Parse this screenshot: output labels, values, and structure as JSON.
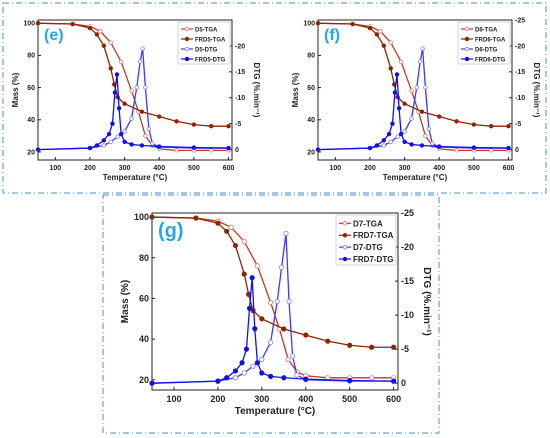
{
  "colors": {
    "tga_line": "#c0392b",
    "tga_open_marker": "#e07a6a",
    "frd_tga": "#8b2500",
    "dtg_line": "#3a3aff",
    "dtg_open_marker": "#7f7fff",
    "frd_dtg": "#1010ee",
    "panel_letter": "#2aa4e8",
    "frame": "#4a90c8",
    "axis": "#222222"
  },
  "chart_data": [
    {
      "panel_letter": "(e)",
      "type": "line",
      "xlabel": "Temperature (°C)",
      "ylabel_left": "Mass (%)",
      "ylabel_right": "DTG (%.min⁻¹)",
      "xlim": [
        50,
        610
      ],
      "ylim_left": [
        15,
        102
      ],
      "ylim_right_inverted": [
        2,
        -25
      ],
      "x_ticks": [
        "100",
        "200",
        "300",
        "400",
        "500",
        "600"
      ],
      "y_left_ticks": [
        "20",
        "40",
        "60",
        "80",
        "100"
      ],
      "y_right_ticks": [
        "0",
        "-5",
        "-10",
        "-15",
        "-20"
      ],
      "legend": [
        "D5-TGA",
        "FRD5-TGA",
        "D5-DTG",
        "FRD5-DTG"
      ],
      "legend_position": "top-right",
      "series": [
        {
          "name": "D5-TGA",
          "axis": "left",
          "style": "open",
          "x": [
            50,
            150,
            200,
            230,
            260,
            290,
            320,
            340,
            360,
            380,
            400,
            450,
            500,
            550,
            600
          ],
          "y": [
            100,
            99.5,
            98,
            95,
            88,
            76,
            58,
            45,
            30,
            24,
            22,
            21,
            21,
            21,
            21
          ]
        },
        {
          "name": "FRD5-TGA",
          "axis": "left",
          "style": "filled",
          "x": [
            50,
            150,
            200,
            220,
            240,
            260,
            270,
            280,
            300,
            350,
            400,
            450,
            500,
            550,
            600
          ],
          "y": [
            100,
            99.5,
            97,
            93,
            86,
            72,
            62,
            54,
            50,
            45,
            42,
            39,
            37,
            36,
            36
          ]
        },
        {
          "name": "D5-DTG",
          "axis": "right",
          "style": "open",
          "x": [
            50,
            200,
            240,
            260,
            280,
            300,
            320,
            335,
            345,
            352,
            360,
            370,
            380,
            400,
            500,
            600
          ],
          "y": [
            0,
            -0.3,
            -0.8,
            -1.5,
            -2.5,
            -3.5,
            -6,
            -12,
            -17,
            -19.5,
            -12,
            -4,
            -1.2,
            -0.5,
            -0.3,
            -0.3
          ]
        },
        {
          "name": "FRD5-DTG",
          "axis": "right",
          "style": "filled",
          "x": [
            50,
            200,
            220,
            240,
            255,
            265,
            272,
            278,
            284,
            290,
            300,
            320,
            350,
            400,
            500,
            600
          ],
          "y": [
            0,
            -0.3,
            -0.8,
            -1.8,
            -3,
            -5,
            -11,
            -14.5,
            -8,
            -3,
            -1.5,
            -1,
            -0.8,
            -0.6,
            -0.4,
            -0.3
          ]
        }
      ]
    },
    {
      "panel_letter": "(f)",
      "type": "line",
      "xlabel": "Temperature (°C)",
      "ylabel_left": "Mass (%)",
      "ylabel_right": "DTG (%.min⁻¹)",
      "xlim": [
        50,
        610
      ],
      "ylim_left": [
        15,
        102
      ],
      "ylim_right_inverted": [
        2,
        -25
      ],
      "x_ticks": [
        "100",
        "200",
        "300",
        "400",
        "500",
        "600"
      ],
      "y_left_ticks": [
        "20",
        "40",
        "60",
        "80",
        "100"
      ],
      "y_right_ticks": [
        "0",
        "-5",
        "-10",
        "-15",
        "-20",
        "-25"
      ],
      "legend": [
        "D6-TGA",
        "FRD6-TGA",
        "D6-DTG",
        "FRD6-DTG"
      ],
      "legend_position": "top-right",
      "series": [
        {
          "name": "D6-TGA",
          "axis": "left",
          "style": "open",
          "x": [
            50,
            150,
            200,
            230,
            260,
            290,
            320,
            340,
            360,
            380,
            400,
            450,
            500,
            550,
            600
          ],
          "y": [
            100,
            99.5,
            98,
            95,
            88,
            76,
            58,
            45,
            30,
            24,
            22,
            21,
            21,
            21,
            21
          ]
        },
        {
          "name": "FRD6-TGA",
          "axis": "left",
          "style": "filled",
          "x": [
            50,
            150,
            200,
            220,
            240,
            260,
            270,
            280,
            300,
            350,
            400,
            450,
            500,
            550,
            600
          ],
          "y": [
            100,
            99.5,
            97,
            93,
            86,
            72,
            62,
            54,
            50,
            45,
            42,
            39,
            37,
            36,
            36
          ]
        },
        {
          "name": "D6-DTG",
          "axis": "right",
          "style": "open",
          "x": [
            50,
            200,
            240,
            260,
            280,
            300,
            320,
            335,
            345,
            352,
            360,
            370,
            380,
            400,
            500,
            600
          ],
          "y": [
            0,
            -0.3,
            -0.8,
            -1.5,
            -2.5,
            -3.5,
            -6,
            -12,
            -17,
            -19.5,
            -12,
            -4,
            -1.2,
            -0.5,
            -0.3,
            -0.3
          ]
        },
        {
          "name": "FRD6-DTG",
          "axis": "right",
          "style": "filled",
          "x": [
            50,
            200,
            220,
            240,
            255,
            265,
            272,
            278,
            284,
            290,
            300,
            320,
            350,
            400,
            500,
            600
          ],
          "y": [
            0,
            -0.3,
            -0.8,
            -1.8,
            -3,
            -5,
            -11,
            -14.5,
            -8,
            -3,
            -1.5,
            -1,
            -0.8,
            -0.6,
            -0.4,
            -0.3
          ]
        }
      ]
    },
    {
      "panel_letter": "(g)",
      "type": "line",
      "xlabel": "Temperature (°C)",
      "ylabel_left": "Mass (%)",
      "ylabel_right": "DTG (%.min⁻¹)",
      "xlim": [
        50,
        610
      ],
      "ylim_left": [
        15,
        102
      ],
      "ylim_right_inverted": [
        1,
        -25
      ],
      "x_ticks": [
        "100",
        "200",
        "300",
        "400",
        "500",
        "600"
      ],
      "y_left_ticks": [
        "20",
        "40",
        "60",
        "80",
        "100"
      ],
      "y_right_ticks": [
        "0",
        "-5",
        "-10",
        "-15",
        "-20",
        "-25"
      ],
      "legend": [
        "D7-TGA",
        "FRD7-TGA",
        "D7-DTG",
        "FRD7-DTG"
      ],
      "legend_position": "top-right",
      "series": [
        {
          "name": "D7-TGA",
          "axis": "left",
          "style": "open",
          "x": [
            50,
            150,
            200,
            230,
            260,
            290,
            320,
            340,
            360,
            380,
            400,
            450,
            500,
            550,
            600
          ],
          "y": [
            100,
            99.5,
            98,
            95,
            88,
            76,
            58,
            45,
            30,
            24,
            22,
            21,
            21,
            21,
            21
          ]
        },
        {
          "name": "FRD7-TGA",
          "axis": "left",
          "style": "filled",
          "x": [
            50,
            150,
            200,
            220,
            240,
            260,
            270,
            280,
            300,
            350,
            400,
            450,
            500,
            550,
            600
          ],
          "y": [
            100,
            99.5,
            97,
            93,
            86,
            72,
            62,
            54,
            50,
            45,
            42,
            39,
            37,
            36,
            36
          ]
        },
        {
          "name": "D7-DTG",
          "axis": "right",
          "style": "open",
          "x": [
            50,
            200,
            240,
            260,
            280,
            300,
            320,
            335,
            345,
            355,
            362,
            370,
            380,
            400,
            500,
            600
          ],
          "y": [
            0,
            -0.3,
            -0.8,
            -1.5,
            -2.5,
            -3.5,
            -6,
            -12,
            -17,
            -22,
            -12,
            -4,
            -1.2,
            -0.5,
            -0.3,
            -0.3
          ]
        },
        {
          "name": "FRD7-DTG",
          "axis": "right",
          "style": "filled",
          "x": [
            50,
            200,
            220,
            240,
            255,
            265,
            272,
            278,
            284,
            290,
            300,
            320,
            350,
            400,
            500,
            600
          ],
          "y": [
            0,
            -0.3,
            -0.8,
            -1.8,
            -3,
            -5,
            -11,
            -15.5,
            -8,
            -3,
            -1.5,
            -1,
            -0.8,
            -0.6,
            -0.4,
            -0.3
          ]
        }
      ]
    }
  ]
}
